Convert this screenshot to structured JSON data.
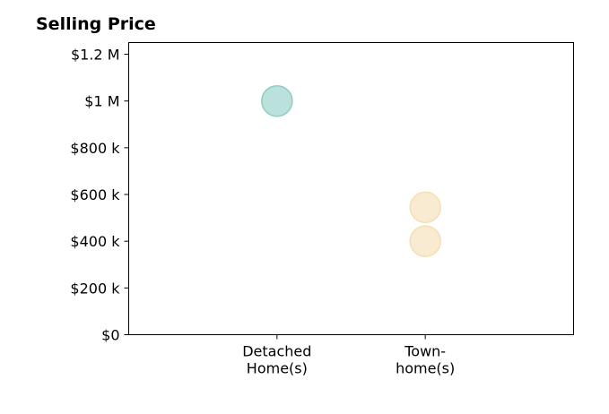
{
  "chart_data": {
    "type": "scatter",
    "title": "Selling Price",
    "xlabel": "",
    "ylabel": "",
    "categories": [
      [
        "Detached",
        "Home(s)"
      ],
      [
        "Town-",
        "home(s)"
      ]
    ],
    "points": [
      {
        "category": 0,
        "value": 1000000,
        "color": "#8ecdc4"
      },
      {
        "category": 1,
        "value": 545000,
        "color": "#f5deb3"
      },
      {
        "category": 1,
        "value": 400000,
        "color": "#f5deb3"
      }
    ],
    "ylim": [
      0,
      1250000
    ],
    "yticks": [
      0,
      200000,
      400000,
      600000,
      800000,
      1000000,
      1200000
    ],
    "ytick_labels": [
      "$0",
      "$200 k",
      "$400 k",
      "$600 k",
      "$800 k",
      "$1 M",
      "$1.2 M"
    ],
    "grid": false,
    "legend": "none"
  }
}
